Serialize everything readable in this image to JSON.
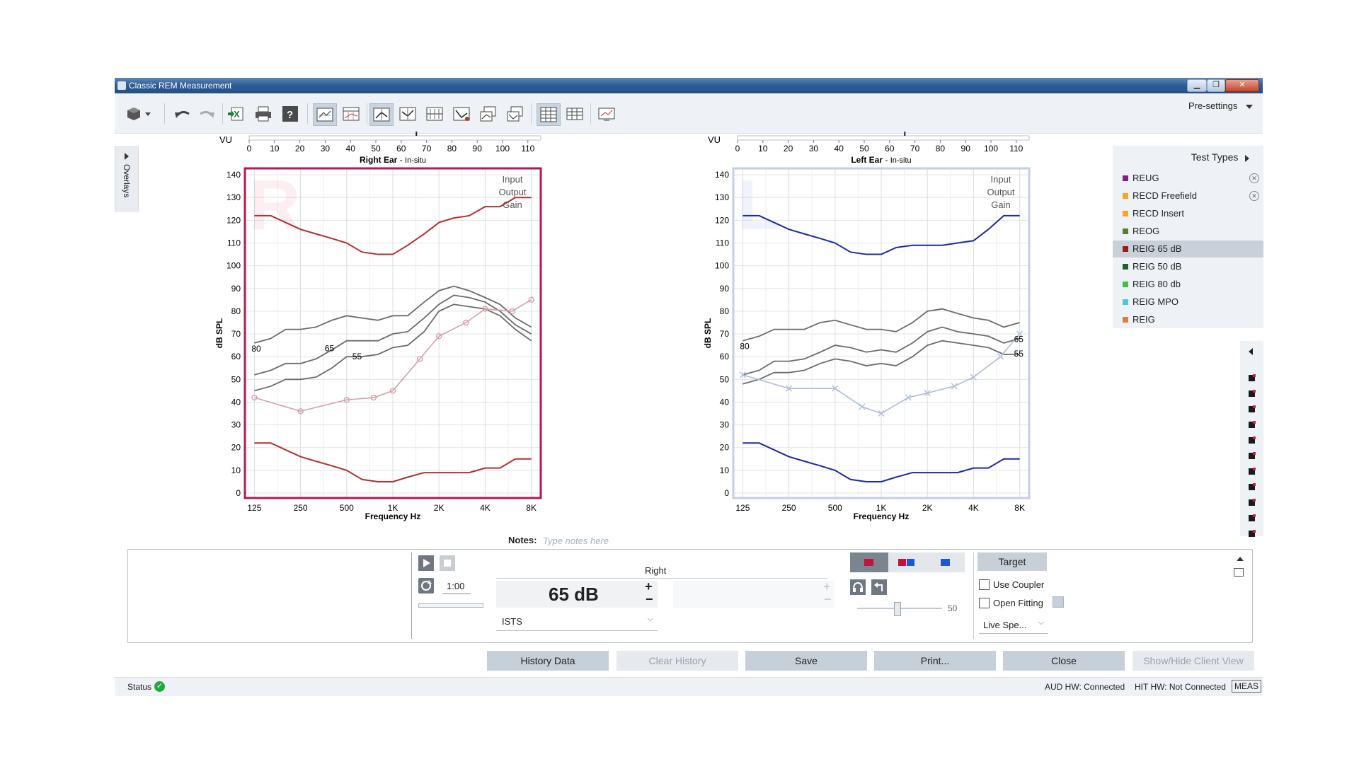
{
  "window": {
    "title": "Classic REM Measurement",
    "minimize": "▁",
    "restore": "❐",
    "close": "✕"
  },
  "toolbar": {
    "presettings": "Pre-settings"
  },
  "overlays_tab": "Overlays",
  "right_chart": {
    "vu_label": "VU",
    "vu_ticks": [
      "0",
      "10",
      "20",
      "30",
      "40",
      "50",
      "60",
      "70",
      "80",
      "90",
      "100",
      "110"
    ],
    "ear_title": "Right Ear",
    "ear_mode": "In-situ",
    "watermark": "R",
    "legend": [
      "Input",
      "Output",
      "Gain"
    ],
    "y_label": "dB SPL",
    "x_label": "Frequency Hz",
    "curve_labels": [
      "80",
      "65",
      "55"
    ]
  },
  "left_chart": {
    "vu_label": "VU",
    "vu_ticks": [
      "0",
      "10",
      "20",
      "30",
      "40",
      "50",
      "60",
      "70",
      "80",
      "90",
      "100",
      "110"
    ],
    "ear_title": "Left Ear",
    "ear_mode": "In-situ",
    "watermark": "L",
    "legend": [
      "Input",
      "Output",
      "Gain"
    ],
    "y_label": "dB SPL",
    "x_label": "Frequency Hz",
    "curve_labels": [
      "80",
      "65",
      "55"
    ]
  },
  "chart_data": [
    {
      "type": "line",
      "title": "Right Ear - In-situ",
      "xlabel": "Frequency Hz",
      "ylabel": "dB SPL",
      "x_scale": "log",
      "xticks": [
        "125",
        "250",
        "500",
        "1K",
        "2K",
        "4K",
        "8K"
      ],
      "yticks": [
        "0",
        "10",
        "20",
        "30",
        "40",
        "50",
        "60",
        "70",
        "80",
        "90",
        "100",
        "110",
        "120",
        "130",
        "140"
      ],
      "ylim": [
        0,
        140
      ],
      "grid": true,
      "x": [
        125,
        160,
        200,
        250,
        315,
        400,
        500,
        630,
        800,
        1000,
        1250,
        1600,
        2000,
        2500,
        3150,
        4000,
        5000,
        6300,
        8000
      ],
      "series": [
        {
          "name": "80",
          "color": "#6b6b6b",
          "values": [
            66,
            68,
            72,
            72,
            73,
            76,
            78,
            77,
            76,
            78,
            78,
            84,
            89,
            91,
            89,
            86,
            83,
            77,
            73
          ]
        },
        {
          "name": "65",
          "color": "#6b6b6b",
          "values": [
            52,
            54,
            57,
            57,
            59,
            63,
            67,
            67,
            67,
            70,
            71,
            77,
            83,
            87,
            86,
            84,
            80,
            74,
            70
          ]
        },
        {
          "name": "55",
          "color": "#6b6b6b",
          "values": [
            45,
            47,
            50,
            50,
            51,
            55,
            60,
            60,
            61,
            64,
            65,
            71,
            80,
            83,
            82,
            81,
            78,
            72,
            67
          ]
        },
        {
          "name": "",
          "color": "#b03030",
          "values": [
            122,
            122,
            119,
            116,
            114,
            112,
            110,
            106,
            105,
            105,
            109,
            114,
            119,
            121,
            122,
            126,
            126,
            130,
            130
          ]
        },
        {
          "name": "",
          "color": "#b03030",
          "values": [
            22,
            22,
            19,
            16,
            14,
            12,
            10,
            6,
            5,
            5,
            7,
            9,
            9,
            9,
            9,
            11,
            11,
            15,
            15
          ]
        }
      ],
      "target_series": {
        "color": "#d4a0a8",
        "x": [
          125,
          250,
          500,
          750,
          1000,
          1500,
          2000,
          3000,
          4000,
          6000,
          8000
        ],
        "values": [
          42,
          36,
          41,
          42,
          45,
          59,
          69,
          75,
          81,
          80,
          85
        ]
      }
    },
    {
      "type": "line",
      "title": "Left Ear - In-situ",
      "xlabel": "Frequency Hz",
      "ylabel": "dB SPL",
      "x_scale": "log",
      "xticks": [
        "125",
        "250",
        "500",
        "1K",
        "2K",
        "4K",
        "8K"
      ],
      "yticks": [
        "0",
        "10",
        "20",
        "30",
        "40",
        "50",
        "60",
        "70",
        "80",
        "90",
        "100",
        "110",
        "120",
        "130",
        "140"
      ],
      "ylim": [
        0,
        140
      ],
      "grid": true,
      "x": [
        125,
        160,
        200,
        250,
        315,
        400,
        500,
        630,
        800,
        1000,
        1250,
        1600,
        2000,
        2500,
        3150,
        4000,
        5000,
        6300,
        8000
      ],
      "series": [
        {
          "name": "80",
          "color": "#6b6b6b",
          "values": [
            67,
            69,
            72,
            72,
            72,
            75,
            76,
            74,
            72,
            72,
            71,
            75,
            80,
            81,
            79,
            77,
            76,
            73,
            75
          ]
        },
        {
          "name": "65",
          "color": "#6b6b6b",
          "values": [
            52,
            54,
            58,
            58,
            59,
            62,
            65,
            64,
            62,
            63,
            62,
            66,
            71,
            73,
            71,
            70,
            69,
            66,
            68
          ]
        },
        {
          "name": "55",
          "color": "#6b6b6b",
          "values": [
            48,
            50,
            53,
            53,
            54,
            57,
            59,
            58,
            56,
            57,
            56,
            60,
            65,
            67,
            66,
            65,
            64,
            61,
            61
          ]
        },
        {
          "name": "",
          "color": "#1c2a9e",
          "values": [
            122,
            122,
            119,
            116,
            114,
            112,
            110,
            106,
            105,
            105,
            108,
            109,
            109,
            109,
            110,
            111,
            116,
            122,
            122
          ]
        },
        {
          "name": "",
          "color": "#1c2a9e",
          "values": [
            22,
            22,
            19,
            16,
            14,
            12,
            10,
            6,
            5,
            5,
            7,
            9,
            9,
            9,
            9,
            11,
            11,
            15,
            15
          ]
        }
      ],
      "target_series": {
        "color": "#aebdd6",
        "x": [
          125,
          250,
          500,
          750,
          1000,
          1500,
          2000,
          3000,
          4000,
          6000,
          8000
        ],
        "values": [
          52,
          46,
          46,
          38,
          35,
          42,
          44,
          47,
          51,
          60,
          70
        ]
      }
    }
  ],
  "test_types": {
    "header": "Test Types",
    "items": [
      {
        "label": "REUG",
        "color": "#8b1a8b",
        "removable": true,
        "selected": false
      },
      {
        "label": "RECD Freefield",
        "color": "#f5a623",
        "removable": true,
        "selected": false
      },
      {
        "label": "RECD Insert",
        "color": "#f5a623",
        "removable": false,
        "selected": false
      },
      {
        "label": "REOG",
        "color": "#5a7d3a",
        "removable": false,
        "selected": false
      },
      {
        "label": "REIG 65 dB",
        "color": "#9b1b1b",
        "removable": false,
        "selected": true
      },
      {
        "label": "REIG 50 dB",
        "color": "#1f5f2a",
        "removable": false,
        "selected": false
      },
      {
        "label": "REIG 80 db",
        "color": "#3cc23c",
        "removable": false,
        "selected": false
      },
      {
        "label": "REIG MPO",
        "color": "#49c9d6",
        "removable": false,
        "selected": false
      },
      {
        "label": "REIG",
        "color": "#e07b3a",
        "removable": false,
        "selected": false
      }
    ]
  },
  "notes": {
    "label": "Notes:",
    "placeholder": "Type notes here"
  },
  "controls": {
    "duration": "1:00",
    "ear": "Right",
    "level": "65 dB",
    "signal": "ISTS",
    "slider_value": "50",
    "target_button": "Target",
    "use_coupler": "Use Coupler",
    "open_fitting": "Open Fitting",
    "live_speech": "Live Spe...",
    "plus": "+",
    "minus": "−"
  },
  "buttons": {
    "history": "History Data",
    "clear_history": "Clear History",
    "save": "Save",
    "print": "Print...",
    "close": "Close",
    "client_view": "Show/Hide Client View"
  },
  "status": {
    "label": "Status",
    "aud_hw": "AUD HW: Connected",
    "hit_hw": "HIT HW: Not Connected",
    "meas": "MEAS"
  }
}
